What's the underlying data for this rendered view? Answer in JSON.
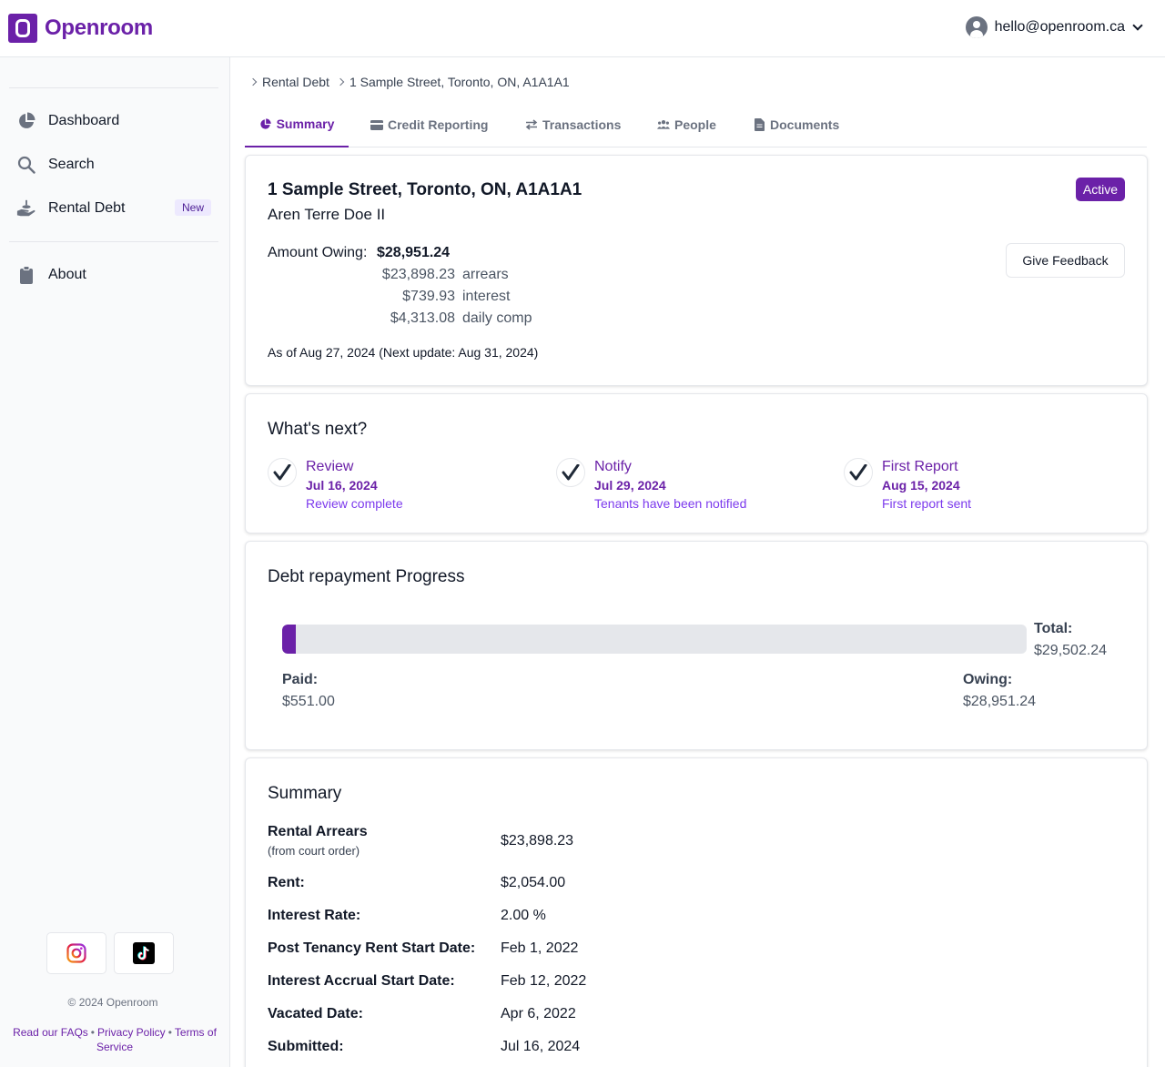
{
  "header": {
    "brand": "Openroom",
    "user_email": "hello@openroom.ca"
  },
  "sidebar": {
    "items": [
      {
        "label": "Dashboard",
        "icon": "pie-chart-icon"
      },
      {
        "label": "Search",
        "icon": "search-icon"
      },
      {
        "label": "Rental Debt",
        "icon": "hand-coins-icon",
        "badge": "New"
      },
      {
        "label": "About",
        "icon": "clipboard-icon"
      }
    ],
    "social": [
      "instagram-icon",
      "tiktok-icon"
    ],
    "copyright": "© 2024 Openroom",
    "footer": {
      "faq": "Read our FAQs",
      "privacy": "Privacy Policy",
      "terms": "Terms of Service"
    }
  },
  "breadcrumb": [
    "Rental Debt",
    "1 Sample Street, Toronto, ON, A1A1A1"
  ],
  "tabs": [
    {
      "label": "Summary",
      "active": true
    },
    {
      "label": "Credit Reporting"
    },
    {
      "label": "Transactions"
    },
    {
      "label": "People"
    },
    {
      "label": "Documents"
    }
  ],
  "overview": {
    "address": "1 Sample Street, Toronto, ON, A1A1A1",
    "tenant": "Aren Terre Doe II",
    "status": "Active",
    "feedback_label": "Give Feedback",
    "amount_owing_label": "Amount Owing:",
    "amount_owing": "$28,951.24",
    "breakdown": [
      {
        "amount": "$23,898.23",
        "label": "arrears"
      },
      {
        "amount": "$739.93",
        "label": "interest"
      },
      {
        "amount": "$4,313.08",
        "label": "daily comp"
      }
    ],
    "as_of": "As of Aug 27, 2024 (Next update: Aug 31, 2024)"
  },
  "next_steps": {
    "title": "What's next?",
    "steps": [
      {
        "title": "Review",
        "date": "Jul 16, 2024",
        "desc": "Review complete"
      },
      {
        "title": "Notify",
        "date": "Jul 29, 2024",
        "desc": "Tenants have been notified"
      },
      {
        "title": "First Report",
        "date": "Aug 15, 2024",
        "desc": "First report sent"
      }
    ]
  },
  "progress": {
    "title": "Debt repayment Progress",
    "total_label": "Total:",
    "total": "$29,502.24",
    "paid_label": "Paid:",
    "paid": "$551.00",
    "owing_label": "Owing:",
    "owing": "$28,951.24",
    "paid_fraction": 0.0187,
    "accent": "#6b21a8"
  },
  "summary": {
    "title": "Summary",
    "rows": [
      {
        "key": "Rental Arrears",
        "sub": "(from court order)",
        "value": "$23,898.23"
      },
      {
        "key": "Rent:",
        "value": "$2,054.00"
      },
      {
        "key": "Interest Rate:",
        "value": "2.00 %"
      },
      {
        "key": "Post Tenancy Rent Start Date:",
        "value": "Feb 1, 2022"
      },
      {
        "key": "Interest Accrual Start Date:",
        "value": "Feb 12, 2022"
      },
      {
        "key": "Vacated Date:",
        "value": "Apr 6, 2022"
      },
      {
        "key": "Submitted:",
        "value": "Jul 16, 2024"
      }
    ]
  }
}
